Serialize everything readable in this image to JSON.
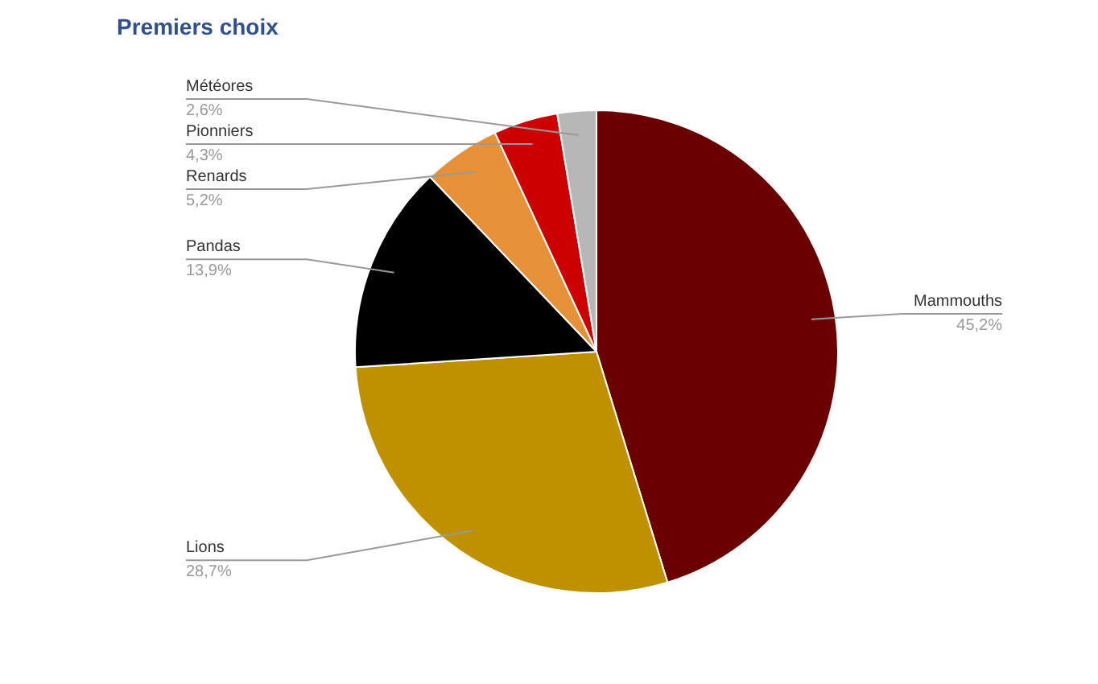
{
  "chart_data": {
    "type": "pie",
    "title": "Premiers choix",
    "categories": [
      "Mammouths",
      "Lions",
      "Pandas",
      "Renards",
      "Pionniers",
      "Météores"
    ],
    "values": [
      45.2,
      28.7,
      13.9,
      5.2,
      4.3,
      2.6
    ],
    "colors": [
      "#6b0000",
      "#bf9000",
      "#000000",
      "#e69138",
      "#cc0000",
      "#b7b7b7"
    ],
    "value_labels": [
      "45,2%",
      "28,7%",
      "13,9%",
      "5,2%",
      "4,3%",
      "2,6%"
    ]
  }
}
